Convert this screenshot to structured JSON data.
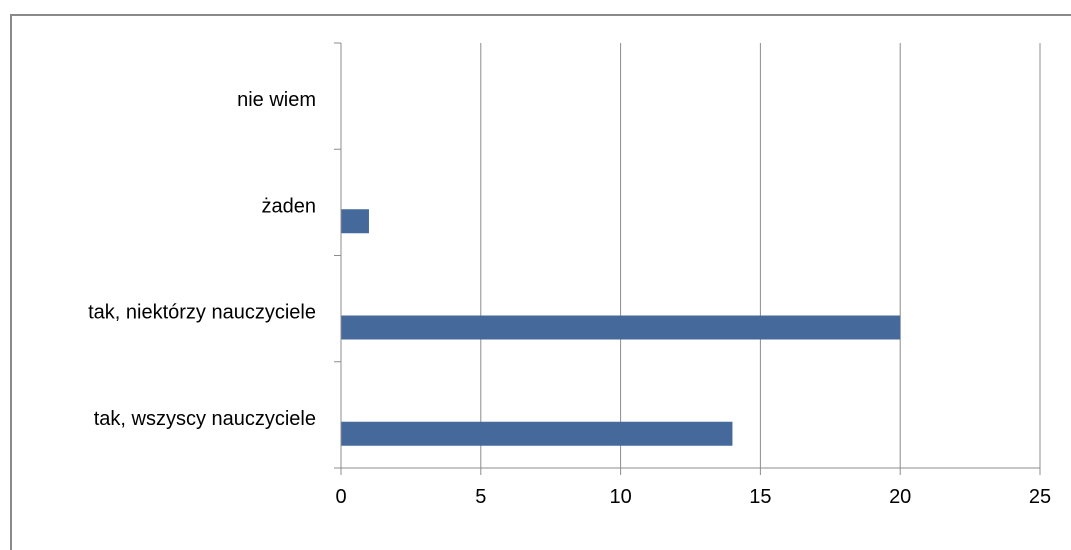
{
  "chart_data": {
    "type": "bar",
    "orientation": "horizontal",
    "title": "",
    "xlabel": "",
    "ylabel": "",
    "categories": [
      "nie wiem",
      "żaden",
      "tak, niektórzy nauczyciele",
      "tak, wszyscy nauczyciele"
    ],
    "values": [
      0,
      1,
      20,
      14
    ],
    "xlim": [
      0,
      25
    ],
    "x_ticks": [
      "0",
      "5",
      "10",
      "15",
      "20",
      "25"
    ],
    "grid": "vertical",
    "legend": "none",
    "bar_color": "#44699A"
  }
}
